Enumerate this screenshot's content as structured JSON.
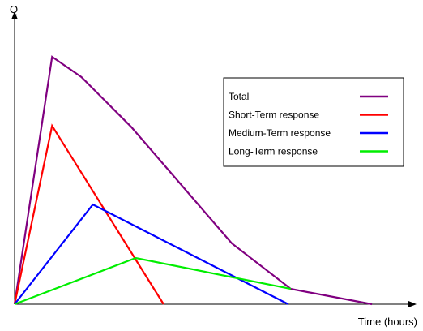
{
  "chart_data": {
    "type": "line",
    "xlabel": "Time (hours)",
    "ylabel": "Q",
    "xlim": [
      0,
      100
    ],
    "ylim": [
      0,
      100
    ],
    "grid": false,
    "legend_position": "top-right",
    "series": [
      {
        "name": "Total",
        "color": "#800080",
        "points": [
          [
            0,
            0
          ],
          [
            10.5,
            100
          ],
          [
            18.7,
            91.8
          ],
          [
            32.6,
            71.7
          ],
          [
            60.8,
            24.6
          ],
          [
            77.3,
            6.2
          ],
          [
            100,
            0
          ]
        ]
      },
      {
        "name": "Short-Term response",
        "color": "#ff0000",
        "points": [
          [
            0,
            0
          ],
          [
            10.5,
            72.1
          ],
          [
            41.7,
            0
          ]
        ]
      },
      {
        "name": "Medium-Term response",
        "color": "#0000ff",
        "points": [
          [
            0,
            0
          ],
          [
            21.9,
            40.3
          ],
          [
            76.6,
            0
          ]
        ]
      },
      {
        "name": "Long-Term response",
        "color": "#00ee00",
        "points": [
          [
            0,
            0
          ],
          [
            33.9,
            18.7
          ],
          [
            77.3,
            6.2
          ]
        ]
      }
    ]
  }
}
